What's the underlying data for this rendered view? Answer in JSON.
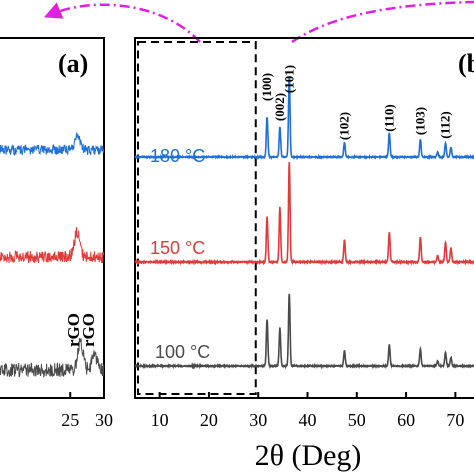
{
  "chart_data": [
    {
      "type": "line",
      "panel_label": "(a)",
      "xlabel": "",
      "ylabel": "",
      "x_ticks": [
        25,
        30
      ],
      "xlim": [
        14,
        30
      ],
      "annotations": [
        {
          "text": "rGO",
          "x": 26.3
        },
        {
          "text": "rGO",
          "x": 28.5
        }
      ],
      "series": [
        {
          "color": "#1f6fd6",
          "peaks": [
            {
              "x": 26.1,
              "h": 0.8
            }
          ]
        },
        {
          "color": "#e03a3a",
          "peaks": [
            {
              "x": 26.0,
              "h": 1.4
            }
          ]
        },
        {
          "color": "#4a4a4a",
          "peaks": [
            {
              "x": 26.5,
              "h": 1.5
            },
            {
              "x": 28.6,
              "h": 0.9
            }
          ]
        }
      ]
    },
    {
      "type": "line",
      "panel_label": "(b",
      "xlabel": "2θ (Deg)",
      "ylabel": "",
      "x_ticks": [
        10,
        20,
        30,
        40,
        50,
        60,
        70
      ],
      "xlim": [
        5,
        75
      ],
      "highlight_range": [
        5,
        29.5
      ],
      "peak_labels": [
        {
          "text": "(100)",
          "x": 31.8
        },
        {
          "text": "(002)",
          "x": 34.4
        },
        {
          "text": "(101)",
          "x": 36.3
        },
        {
          "text": "(102)",
          "x": 47.5
        },
        {
          "text": "(110)",
          "x": 56.6
        },
        {
          "text": "(103)",
          "x": 62.9
        },
        {
          "text": "(112)",
          "x": 68.0
        }
      ],
      "series": [
        {
          "name": "180 °C",
          "color": "#1f6fd6",
          "peaks": [
            {
              "x": 31.8,
              "h": 0.5
            },
            {
              "x": 34.4,
              "h": 0.38
            },
            {
              "x": 36.3,
              "h": 1.0
            },
            {
              "x": 47.5,
              "h": 0.18
            },
            {
              "x": 56.6,
              "h": 0.3
            },
            {
              "x": 62.9,
              "h": 0.22
            },
            {
              "x": 66.4,
              "h": 0.06
            },
            {
              "x": 68.0,
              "h": 0.18
            },
            {
              "x": 69.1,
              "h": 0.12
            }
          ]
        },
        {
          "name": "150 °C",
          "color": "#e03a3a",
          "peaks": [
            {
              "x": 31.8,
              "h": 0.45
            },
            {
              "x": 34.4,
              "h": 0.55
            },
            {
              "x": 36.3,
              "h": 1.0
            },
            {
              "x": 47.5,
              "h": 0.22
            },
            {
              "x": 56.6,
              "h": 0.3
            },
            {
              "x": 62.9,
              "h": 0.25
            },
            {
              "x": 66.4,
              "h": 0.06
            },
            {
              "x": 68.0,
              "h": 0.2
            },
            {
              "x": 69.1,
              "h": 0.14
            }
          ]
        },
        {
          "name": "100 °C",
          "color": "#4a4a4a",
          "peaks": [
            {
              "x": 31.8,
              "h": 0.55
            },
            {
              "x": 34.4,
              "h": 0.45
            },
            {
              "x": 36.3,
              "h": 0.85
            },
            {
              "x": 47.5,
              "h": 0.18
            },
            {
              "x": 56.6,
              "h": 0.25
            },
            {
              "x": 62.9,
              "h": 0.2
            },
            {
              "x": 66.4,
              "h": 0.06
            },
            {
              "x": 68.0,
              "h": 0.16
            },
            {
              "x": 69.1,
              "h": 0.1
            }
          ]
        }
      ]
    }
  ],
  "colors": {
    "arrow": "#e020e0",
    "axis": "#000000",
    "dashed_box": "#000000"
  }
}
